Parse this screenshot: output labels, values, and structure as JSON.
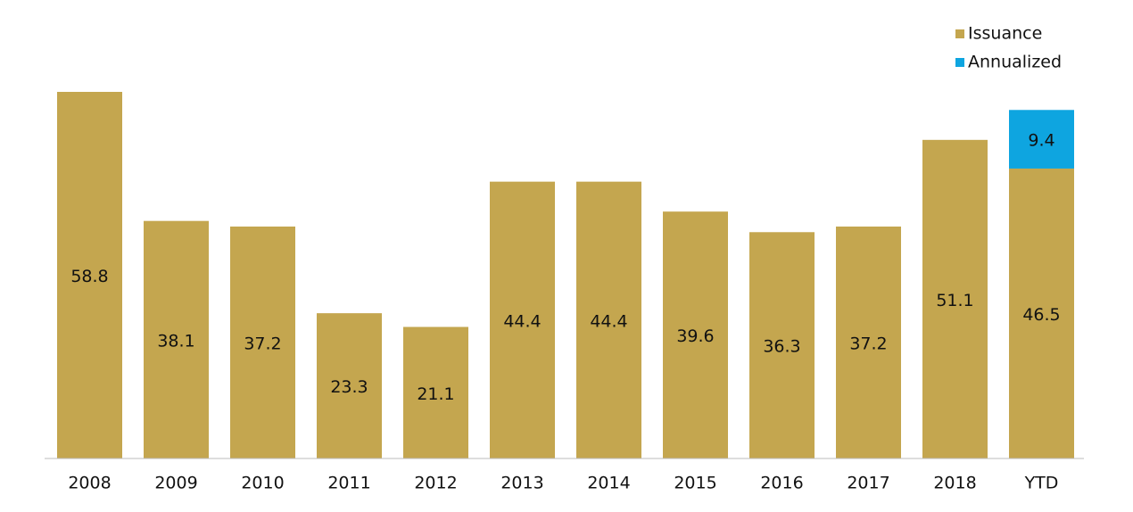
{
  "chart_data": {
    "type": "stacked_bar",
    "categories": [
      "2008",
      "2009",
      "2010",
      "2011",
      "2012",
      "2013",
      "2014",
      "2015",
      "2016",
      "2017",
      "2018",
      "YTD"
    ],
    "series": [
      {
        "name": "Issuance",
        "color": "#c4a64f",
        "values": [
          58.8,
          38.1,
          37.2,
          23.3,
          21.1,
          44.4,
          44.4,
          39.6,
          36.3,
          37.2,
          51.1,
          46.5
        ]
      },
      {
        "name": "Annualized",
        "color": "#0ea5e0",
        "values": [
          null,
          null,
          null,
          null,
          null,
          null,
          null,
          null,
          null,
          null,
          null,
          9.4
        ]
      }
    ],
    "legend": "top-right"
  }
}
